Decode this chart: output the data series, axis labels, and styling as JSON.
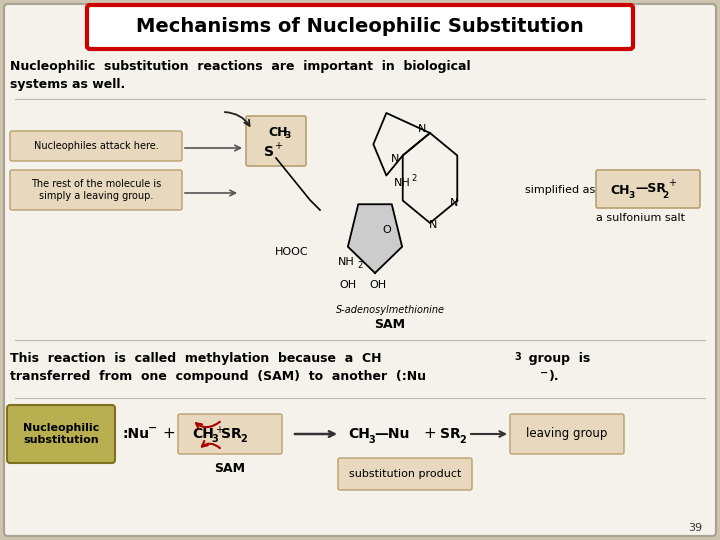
{
  "title": "Mechanisms of Nucleophilic Substitution",
  "title_fontsize": 14,
  "title_box_color": "#cc0000",
  "title_box_fill": "#ffffff",
  "slide_bg": "#ccc4ae",
  "body_bg": "#f5f2eb",
  "tan_box_fill": "#e8d9be",
  "tan_box_edge": "#b8a070",
  "orange_box_fill": "#e8c898",
  "olive_box_fill": "#b8b050",
  "olive_box_edge": "#807020",
  "page_number": "39",
  "label_nucleophiles": "Nucleophiles attack here.",
  "label_leaving": "The rest of the molecule is\nsimply a leaving group.",
  "label_simplified": "simplified as",
  "label_sulfonium": "a sulfonium salt",
  "label_sam_name": "S-adenosylmethionine",
  "label_sam": "SAM",
  "label_sam2": "SAM",
  "label_sub_product": "substitution product",
  "label_nucleophilic": "Nucleophilic\nsubstitution",
  "label_leaving_group": "leaving group"
}
